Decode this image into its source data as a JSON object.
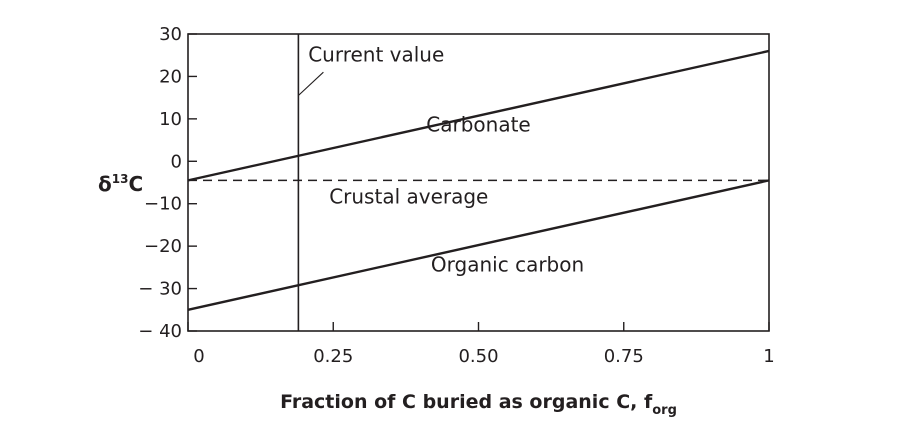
{
  "chart_data": {
    "type": "line",
    "ylabel": {
      "main": "δ",
      "sup": "13",
      "suffix": "C"
    },
    "xlabel": {
      "main": "Fraction of C buried as organic C, f",
      "sub": "org"
    },
    "xlim": [
      0,
      1
    ],
    "ylim": [
      -40,
      30
    ],
    "x_ticks": [
      {
        "value": 0,
        "label": "0"
      },
      {
        "value": 0.25,
        "label": "0.25"
      },
      {
        "value": 0.5,
        "label": "0.50"
      },
      {
        "value": 0.75,
        "label": "0.75"
      },
      {
        "value": 1,
        "label": "1"
      }
    ],
    "y_ticks": [
      {
        "value": 30,
        "label": "30"
      },
      {
        "value": 20,
        "label": "20"
      },
      {
        "value": 10,
        "label": "10"
      },
      {
        "value": 0,
        "label": "0"
      },
      {
        "value": -10,
        "label": "−10"
      },
      {
        "value": -20,
        "label": "−20"
      },
      {
        "value": -30,
        "label": "− 30"
      },
      {
        "value": -40,
        "label": "− 40"
      }
    ],
    "series": [
      {
        "label": "Carbonate",
        "x": [
          0,
          1
        ],
        "y": [
          -4.5,
          26
        ],
        "style": "solid",
        "label_at": [
          0.5,
          7
        ]
      },
      {
        "label": "Organic carbon",
        "x": [
          0,
          1
        ],
        "y": [
          -35,
          -4.5
        ],
        "style": "solid",
        "label_at": [
          0.55,
          -26
        ]
      },
      {
        "label": "Crustal average",
        "x": [
          0,
          1
        ],
        "y": [
          -4.5,
          -4.5
        ],
        "style": "dashed",
        "label_at": [
          0.38,
          -10
        ]
      }
    ],
    "current_value": {
      "label": "Current value",
      "x": 0.19,
      "label_at": [
        0.2,
        23.5
      ]
    },
    "grid": false,
    "colors": {
      "line": "#231f20",
      "background": "#ffffff"
    }
  }
}
